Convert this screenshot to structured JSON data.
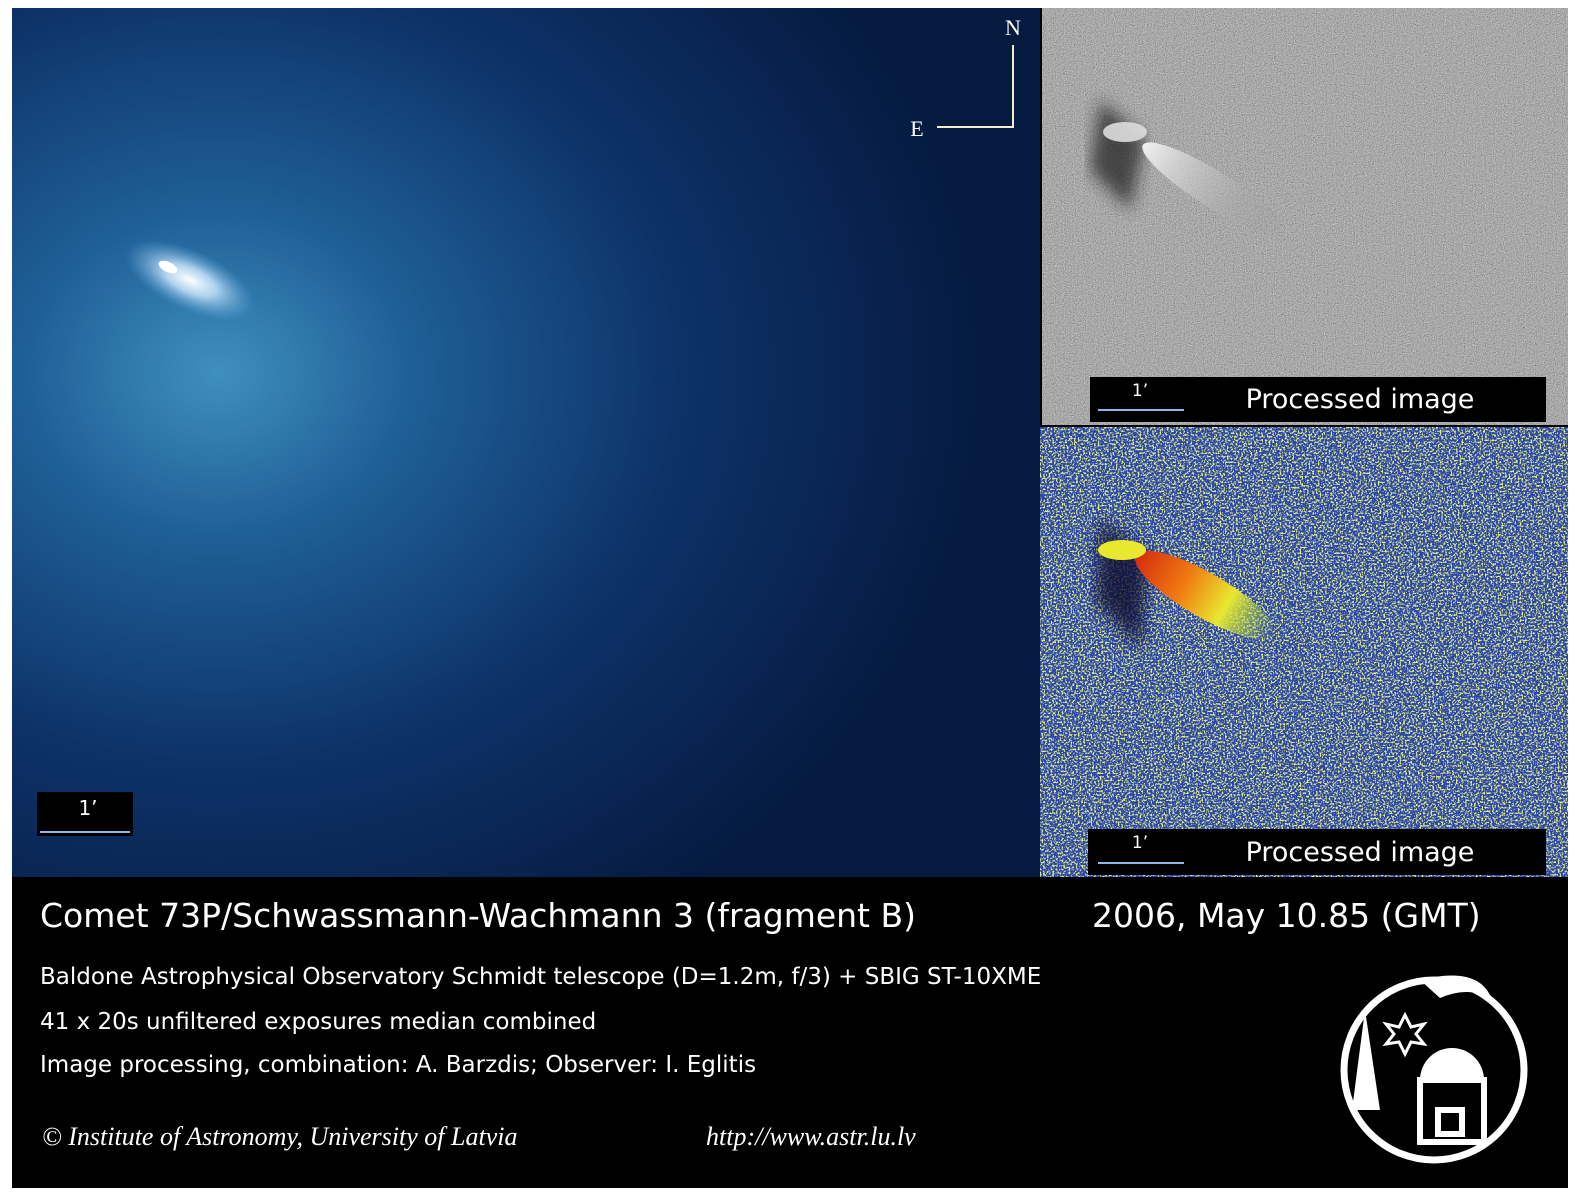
{
  "main_image": {
    "compass": {
      "north": "N",
      "east": "E"
    },
    "scale_label": "1’"
  },
  "processed_panels": [
    {
      "scale_label": "1’",
      "caption": "Processed image"
    },
    {
      "scale_label": "1’",
      "caption": "Processed image"
    }
  ],
  "caption": {
    "title": "Comet 73P/Schwassmann-Wachmann 3 (fragment B)",
    "date": "2006, May 10.85 (GMT)",
    "lines": [
      "Baldone Astrophysical Observatory Schmidt telescope (D=1.2m, f/3) + SBIG ST-10XME",
      "41 x 20s unfiltered exposures median combined",
      "Image processing, combination: A. Barzdis;   Observer:  I. Eglitis"
    ],
    "copyright": "© Institute of Astronomy, University of Latvia",
    "url": "http://www.astr.lu.lv"
  }
}
